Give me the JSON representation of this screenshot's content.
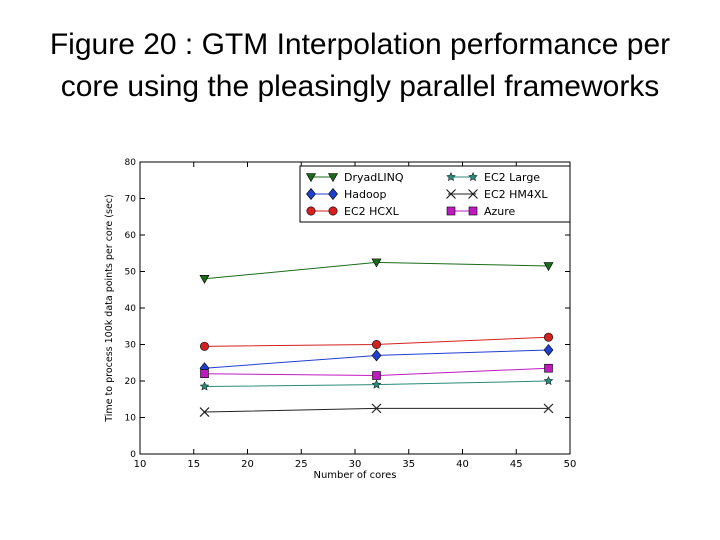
{
  "slide": {
    "title_line1": "Figure 20 : GTM Interpolation performance per",
    "title_line2": "core using the pleasingly parallel frameworks"
  },
  "chart_data": {
    "type": "line",
    "xlabel": "Number of cores",
    "ylabel": "Time to process 100k data points per core (sec)",
    "xlim": [
      10,
      50
    ],
    "ylim": [
      0,
      80
    ],
    "xticks": [
      10,
      15,
      20,
      25,
      30,
      35,
      40,
      45,
      50
    ],
    "yticks": [
      0,
      10,
      20,
      30,
      40,
      50,
      60,
      70,
      80
    ],
    "grid": false,
    "legend_position": "top",
    "x": [
      16,
      32,
      48
    ],
    "series": [
      {
        "name": "DryadLINQ",
        "values": [
          48,
          52.5,
          51.5
        ],
        "color": "#1a6b1a",
        "marker": "triangle-down"
      },
      {
        "name": "EC2 Large",
        "values": [
          18.5,
          19,
          20
        ],
        "color": "#2a8a7a",
        "marker": "star"
      },
      {
        "name": "Hadoop",
        "values": [
          23.5,
          27,
          28.5
        ],
        "color": "#1f3fd0",
        "marker": "diamond"
      },
      {
        "name": "EC2 HM4XL",
        "values": [
          11.5,
          12.5,
          12.5
        ],
        "color": "#222222",
        "marker": "x"
      },
      {
        "name": "EC2 HCXL",
        "values": [
          29.5,
          30,
          32
        ],
        "color": "#d42020",
        "marker": "circle"
      },
      {
        "name": "Azure",
        "values": [
          22,
          21.5,
          23.5
        ],
        "color": "#c019c0",
        "marker": "square"
      }
    ]
  }
}
